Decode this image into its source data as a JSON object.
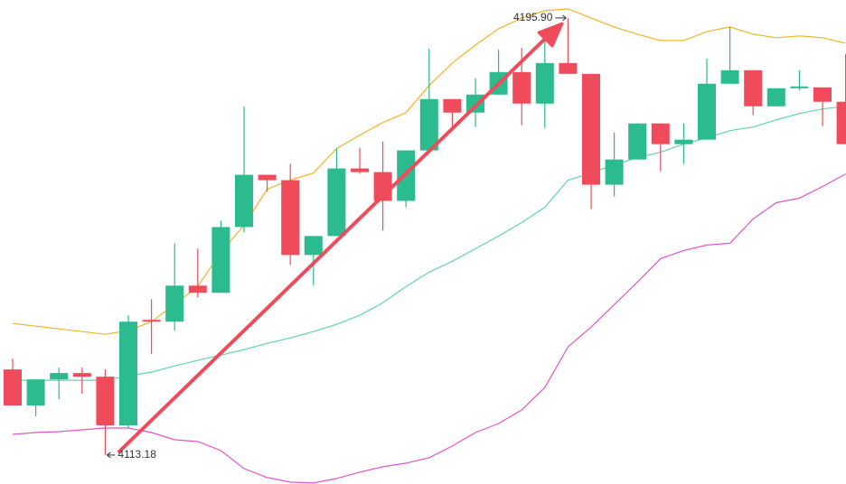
{
  "chart_data": {
    "type": "candlestick",
    "ylim": [
      4107.7,
      4199.3
    ],
    "up_color": "#2bbb8e",
    "down_color": "#ef4b5b",
    "open": [
      4129.38,
      4122.56,
      4127.5,
      4128.7,
      4128.01,
      4118.8,
      4138.76,
      4138.42,
      4145.24,
      4143.88,
      4156.33,
      4166.22,
      4165.2,
      4151.04,
      4154.63,
      4167.42,
      4166.73,
      4161.28,
      4170.83,
      4180.55,
      4177.99,
      4181.4,
      4185.66,
      4179.69,
      4187.37,
      4185.32,
      4164.34,
      4169.12,
      4175.94,
      4172.02,
      4172.87,
      4183.45,
      4186.01,
      4179.18,
      4182.6,
      4182.77,
      4180.04
    ],
    "high": [
      4131.43,
      4127.5,
      4129.72,
      4129.72,
      4129.38,
      4139.62,
      4142.69,
      4153.26,
      4152.24,
      4157.53,
      4179.18,
      4166.22,
      4168.27,
      4154.63,
      4171.17,
      4171.34,
      4172.53,
      4170.83,
      4190.1,
      4180.55,
      4184.47,
      4189.93,
      4190.27,
      4191.63,
      4195.9,
      4185.32,
      4174.24,
      4175.94,
      4175.94,
      4175.94,
      4188.22,
      4194.19,
      4186.01,
      4182.6,
      4186.01,
      4182.77,
      4189.08
    ],
    "low": [
      4122.56,
      4120.51,
      4123.75,
      4124.77,
      4113.18,
      4118.12,
      4132.28,
      4136.71,
      4143.03,
      4143.88,
      4155.31,
      4162.98,
      4149.17,
      4145.24,
      4154.63,
      4166.39,
      4155.65,
      4160.08,
      4170.83,
      4175.26,
      4175.26,
      4181.4,
      4175.6,
      4175.09,
      4185.32,
      4159.74,
      4162.13,
      4169.12,
      4166.9,
      4168.27,
      4172.87,
      4183.45,
      4177.48,
      4179.18,
      4182.25,
      4175.43,
      4172.02
    ],
    "close": [
      4122.56,
      4127.5,
      4128.7,
      4128.01,
      4118.8,
      4138.42,
      4138.42,
      4145.24,
      4143.88,
      4156.33,
      4166.22,
      4165.2,
      4151.04,
      4154.63,
      4167.42,
      4166.73,
      4161.28,
      4170.83,
      4180.55,
      4177.99,
      4181.4,
      4185.66,
      4179.69,
      4187.37,
      4185.32,
      4164.34,
      4169.12,
      4175.94,
      4172.02,
      4172.87,
      4183.45,
      4186.01,
      4179.18,
      4182.6,
      4182.94,
      4180.04,
      4172.02
    ],
    "lines": [
      {
        "color": "#f0b429",
        "values": [
          4138.08,
          4137.57,
          4137.06,
          4136.55,
          4136.03,
          4136.71,
          4138.42,
          4141.66,
          4145.07,
          4151.55,
          4156.67,
          4163.49,
          4165.2,
          4166.56,
          4171.17,
          4173.73,
          4176.11,
          4177.99,
          4183.11,
          4187.37,
          4190.78,
          4193.85,
          4195.9,
          4197.26,
          4197.6,
          4195.9,
          4194.19,
          4192.83,
          4191.63,
          4191.63,
          4193.34,
          4194.19,
          4192.83,
          4192.15,
          4192.49,
          4192.15,
          4191.12
        ]
      },
      {
        "color": "#5fd6a8",
        "values": [
          4127.33,
          4127.33,
          4127.33,
          4127.33,
          4127.33,
          4128.19,
          4128.87,
          4130.06,
          4131.09,
          4132.11,
          4133.13,
          4134.33,
          4135.35,
          4136.55,
          4137.91,
          4139.62,
          4142.0,
          4145.07,
          4147.8,
          4149.85,
          4152.24,
          4154.63,
          4157.18,
          4160.08,
          4165.2,
          4166.56,
          4168.1,
          4169.46,
          4170.48,
          4172.02,
          4173.22,
          4174.57,
          4175.26,
          4176.62,
          4177.82,
          4178.67,
          4179.18
        ]
      },
      {
        "color": "#e255c8",
        "values": [
          4117.1,
          4117.44,
          4117.61,
          4117.95,
          4118.29,
          4118.29,
          4117.44,
          4116.08,
          4115.74,
          4114.03,
          4110.62,
          4108.91,
          4108.06,
          4107.89,
          4108.74,
          4109.94,
          4110.96,
          4111.64,
          4112.67,
          4114.89,
          4117.44,
          4119.15,
          4121.71,
          4125.97,
          4133.64,
          4137.4,
          4141.66,
          4145.92,
          4150.36,
          4151.89,
          4152.92,
          4153.26,
          4157.86,
          4160.93,
          4161.78,
          4164.0,
          4166.39
        ]
      }
    ],
    "max_label": {
      "value": 4195.9,
      "label": "4195.90"
    },
    "min_label": {
      "value": 4113.18,
      "label": "4113.18"
    }
  }
}
